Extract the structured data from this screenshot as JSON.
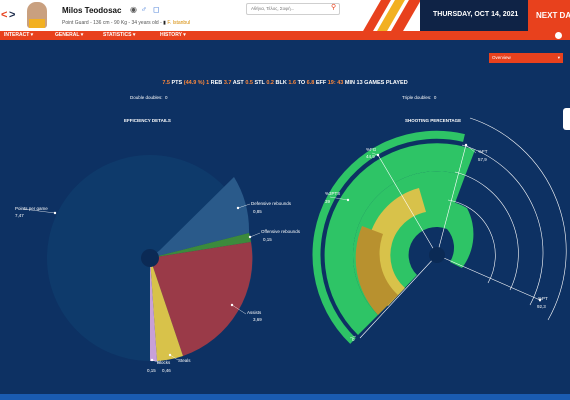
{
  "header": {
    "player_name": "Milos Teodosac",
    "player_info": "Point Guard - 136 cm - 90 Kg - 34 years old -",
    "team": "F. Istanbul",
    "search_placeholder": "Αθήνα, Τέλος, Σοφή...",
    "date": "THURSDAY, OCT 14, 2021",
    "next_day": "NEXT DA"
  },
  "menu": {
    "items": [
      {
        "label": "INTERACT ▾"
      },
      {
        "label": "GENERAL ▾"
      },
      {
        "label": "STATISTICS ▾"
      },
      {
        "label": "HISTORY ▾"
      }
    ]
  },
  "view_selector": {
    "selected": "Overview",
    "chevron": "▾"
  },
  "summary": {
    "pts": "7.5",
    "pts_label": "PTS",
    "fg_pct": "(44.9 %)",
    "reb": "1",
    "reb_label": "REB",
    "ast": "3.7",
    "ast_label": "AST",
    "stl": "0.5",
    "stl_label": "STL",
    "blk": "0.2",
    "blk_label": "BLK",
    "to": "1.6",
    "to_label": "TO",
    "eff": "6.8",
    "eff_label": "EFF",
    "min": "19: 43",
    "min_label": "MIN",
    "games": "13",
    "games_label": "GAMES PLAYED",
    "double_doubles_label": "Double doubles:",
    "double_doubles": "0",
    "triple_doubles_label": "Triple doubles:",
    "triple_doubles": "0"
  },
  "efficiency": {
    "title": "EFFICIENCY DETAILS",
    "slices": [
      {
        "label": "Points per game",
        "value": "7,47",
        "color": "#0e3a6b"
      },
      {
        "label": "Defensive rebounds",
        "value": "0,85",
        "color": "#2a5a8a"
      },
      {
        "label": "Offensive rebounds",
        "value": "0,15",
        "color": "#3c8a3c"
      },
      {
        "label": "Assists",
        "value": "3,69",
        "color": "#9a3a48"
      },
      {
        "label": "Steals",
        "value": "0,46",
        "color": "#d8c24a"
      },
      {
        "label": "Blocks",
        "value": "0,15",
        "color": "#c8a0d8"
      }
    ]
  },
  "shooting": {
    "title": "SHOOTING PERCENTAGE",
    "labels": [
      {
        "label": "%FG",
        "value": "44,9"
      },
      {
        "label": "%FT",
        "value": "57,9"
      },
      {
        "label": "%3PTS",
        "value": "39"
      },
      {
        "label": "%PT",
        "value": "92,3"
      },
      {
        "label": "",
        "value": "0"
      }
    ]
  }
}
